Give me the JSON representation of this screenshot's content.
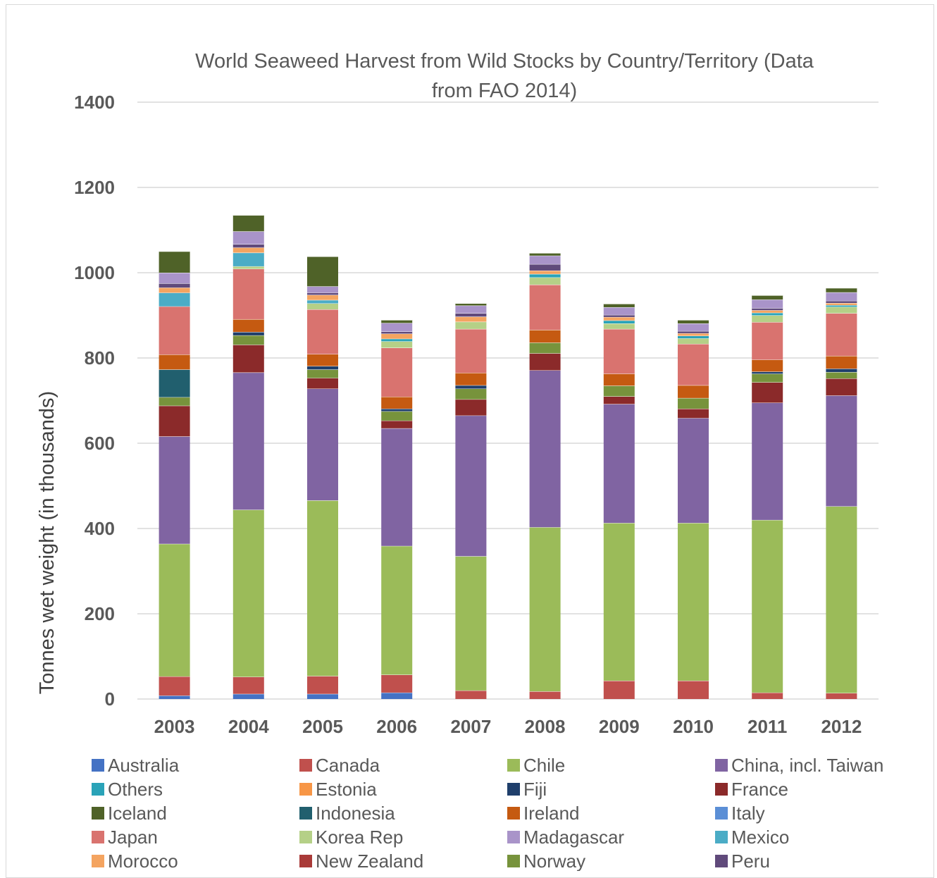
{
  "chart_data": {
    "type": "bar",
    "stacked": true,
    "title_line1": "World Seaweed Harvest from Wild Stocks by Country/Territory   (Data",
    "title_line2": "from FAO 2014)",
    "xlabel": "",
    "ylabel": "Tonnes wet weight  (in thousands)",
    "ylim": [
      0,
      1400
    ],
    "yticks": [
      0,
      200,
      400,
      600,
      800,
      1000,
      1200,
      1400
    ],
    "grid": true,
    "legend_position": "bottom",
    "categories": [
      "2003",
      "2004",
      "2005",
      "2006",
      "2007",
      "2008",
      "2009",
      "2010",
      "2011",
      "2012"
    ],
    "series": [
      {
        "name": "Australia",
        "color": "#4472c4",
        "values": [
          8,
          12,
          12,
          15,
          0,
          0,
          0,
          0,
          0,
          0
        ]
      },
      {
        "name": "Canada",
        "color": "#c0504d",
        "values": [
          45,
          40,
          42,
          42,
          20,
          18,
          43,
          43,
          15,
          14
        ]
      },
      {
        "name": "Chile",
        "color": "#9bbb59",
        "values": [
          311,
          392,
          412,
          302,
          315,
          385,
          370,
          370,
          405,
          438
        ]
      },
      {
        "name": "China, incl. Taiwan",
        "color": "#8064a2",
        "values": [
          252,
          322,
          262,
          276,
          330,
          368,
          279,
          246,
          275,
          260
        ]
      },
      {
        "name": "France",
        "color": "#8b2a2a",
        "values": [
          72,
          65,
          25,
          18,
          38,
          40,
          18,
          22,
          48,
          40
        ]
      },
      {
        "name": "New Zealand",
        "color": "#a93a38",
        "values": [
          0,
          0,
          0,
          0,
          0,
          0,
          0,
          0,
          0,
          0
        ]
      },
      {
        "name": "Norway",
        "color": "#77933c",
        "values": [
          20,
          22,
          20,
          22,
          25,
          25,
          25,
          25,
          20,
          15
        ]
      },
      {
        "name": "Indonesia",
        "color": "#215f6e",
        "values": [
          65,
          0,
          0,
          0,
          0,
          0,
          0,
          0,
          0,
          0
        ]
      },
      {
        "name": "Fiji",
        "color": "#1f3f6b",
        "values": [
          0,
          8,
          8,
          6,
          8,
          0,
          0,
          0,
          5,
          8
        ]
      },
      {
        "name": "Ireland",
        "color": "#c55a11",
        "values": [
          35,
          30,
          28,
          28,
          29,
          30,
          28,
          30,
          28,
          30
        ]
      },
      {
        "name": "Japan",
        "color": "#d9736f",
        "values": [
          113,
          118,
          105,
          115,
          103,
          106,
          105,
          97,
          88,
          100
        ]
      },
      {
        "name": "Korea Rep",
        "color": "#b5d087",
        "values": [
          0,
          6,
          14,
          15,
          17,
          17,
          13,
          13,
          16,
          15
        ]
      },
      {
        "name": "Mexico",
        "color": "#4bacc6",
        "values": [
          32,
          32,
          8,
          0,
          0,
          0,
          0,
          0,
          0,
          0
        ]
      },
      {
        "name": "Others",
        "color": "#2aa3b8",
        "values": [
          0,
          0,
          0,
          6,
          0,
          8,
          7,
          6,
          6,
          4
        ]
      },
      {
        "name": "Morocco",
        "color": "#f4a460",
        "values": [
          12,
          12,
          12,
          12,
          12,
          8,
          8,
          6,
          6,
          5
        ]
      },
      {
        "name": "Estonia",
        "color": "#f79646",
        "values": [
          0,
          0,
          0,
          0,
          0,
          0,
          0,
          0,
          0,
          0
        ]
      },
      {
        "name": "Italy",
        "color": "#5b8fd6",
        "values": [
          0,
          0,
          0,
          0,
          0,
          0,
          0,
          0,
          0,
          0
        ]
      },
      {
        "name": "Peru",
        "color": "#604a7b",
        "values": [
          10,
          8,
          5,
          5,
          8,
          15,
          5,
          5,
          5,
          5
        ]
      },
      {
        "name": "Madagascar",
        "color": "#a994c9",
        "values": [
          25,
          30,
          15,
          20,
          18,
          20,
          18,
          18,
          20,
          20
        ]
      },
      {
        "name": "Iceland",
        "color": "#4f6228",
        "values": [
          50,
          38,
          70,
          7,
          5,
          6,
          8,
          8,
          10,
          10
        ]
      }
    ],
    "legend_order": [
      "Australia",
      "Canada",
      "Chile",
      "China, incl. Taiwan",
      "Others",
      "Estonia",
      "Fiji",
      "France",
      "Iceland",
      "Indonesia",
      "Ireland",
      "Italy",
      "Japan",
      "Korea Rep",
      "Madagascar",
      "Mexico",
      "Morocco",
      "New Zealand",
      "Norway",
      "Peru"
    ]
  }
}
